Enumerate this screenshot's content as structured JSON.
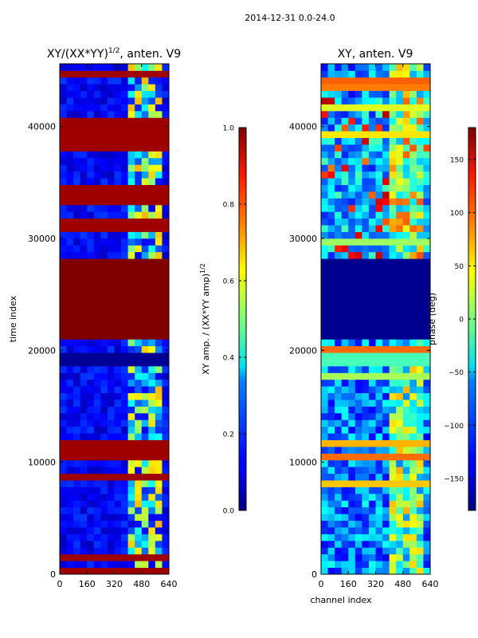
{
  "figure": {
    "suptitle": "2014-12-31 0.0-24.0"
  },
  "chart_data": [
    {
      "type": "heatmap",
      "title": "XY/(XX*YY)",
      "title_sup": "1/2",
      "title_suffix": ", anten. V9",
      "xlabel": "",
      "ylabel": "time index",
      "xlim": [
        0,
        640
      ],
      "ylim": [
        0,
        45600
      ],
      "xticks": [
        0,
        160,
        320,
        480,
        640
      ],
      "yticks": [
        0,
        10000,
        20000,
        30000,
        40000
      ],
      "bands": [
        {
          "name": "saturated block",
          "y_range": [
            21000,
            28300
          ],
          "value": 1.0
        },
        {
          "name": "gap block",
          "y_range": [
            18700,
            19800
          ],
          "value": 0.02
        }
      ],
      "colorbar": {
        "label": "XY amp. / (XX*YY amp)",
        "label_sup": "1/2",
        "range": [
          0.0,
          1.0
        ],
        "ticks": [
          "0.0",
          "0.2",
          "0.4",
          "0.6",
          "0.8",
          "1.0"
        ],
        "colormap": "jet"
      }
    },
    {
      "type": "heatmap",
      "title": "XY, anten. V9",
      "xlabel": "channel index",
      "ylabel": "",
      "xlim": [
        0,
        640
      ],
      "ylim": [
        0,
        45600
      ],
      "xticks": [
        0,
        160,
        320,
        480,
        640
      ],
      "yticks": [
        0,
        10000,
        20000,
        30000,
        40000
      ],
      "bands": [
        {
          "name": "dark block",
          "y_range": [
            21000,
            28300
          ],
          "value": -175
        },
        {
          "name": "flat band",
          "y_range": [
            18700,
            19600
          ],
          "value": -20
        }
      ],
      "colorbar": {
        "label": "phase (deg)",
        "range": [
          -180,
          180
        ],
        "ticks": [
          "150",
          "100",
          "50",
          "0",
          "−50",
          "−100",
          "−150"
        ],
        "colormap": "jet"
      }
    }
  ]
}
